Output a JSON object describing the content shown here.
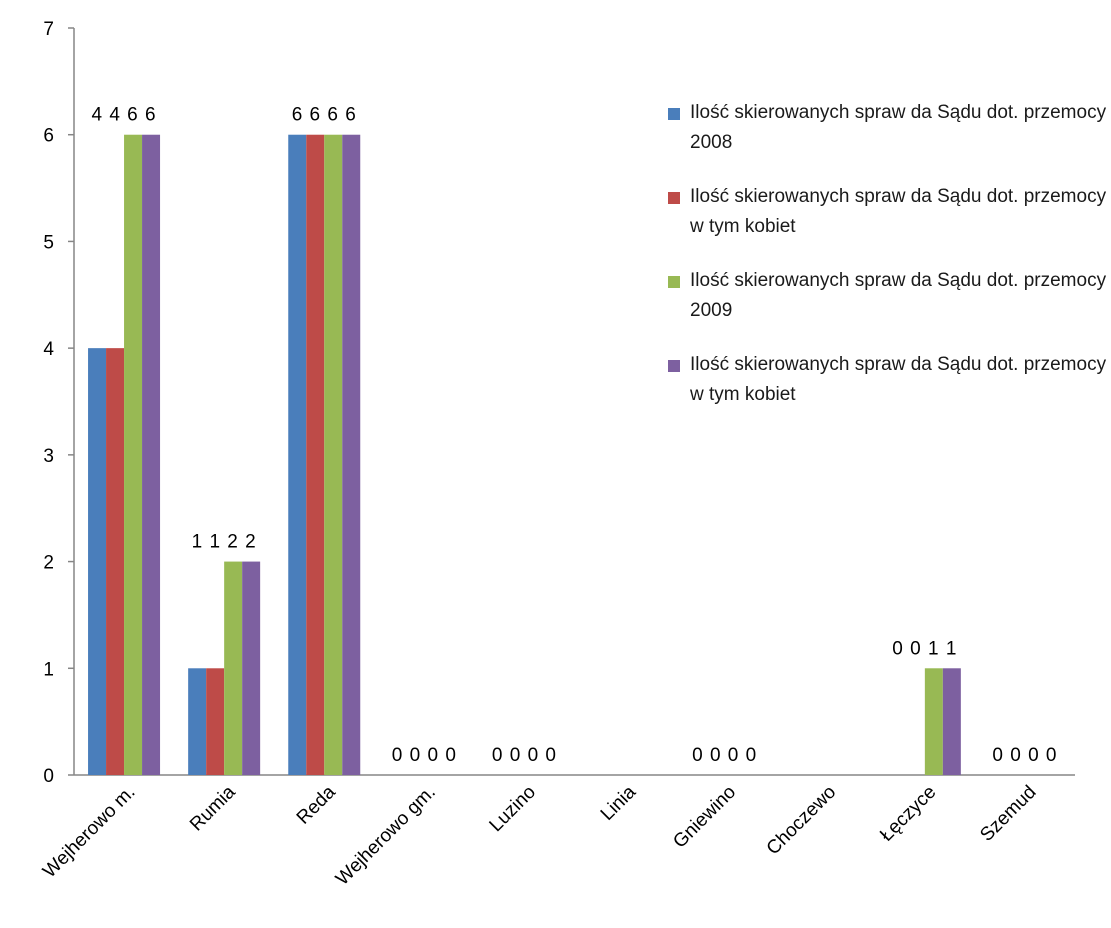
{
  "chart_data": {
    "type": "bar",
    "categories": [
      "Wejherowo m.",
      "Rumia",
      "Reda",
      "Wejherowo gm.",
      "Luzino",
      "Linia",
      "Gniewino",
      "Choczewo",
      "Łęczyce",
      "Szemud"
    ],
    "series": [
      {
        "name": "Ilość skierowanych spraw da Sądu dot. przemocy 2008",
        "color": "#4a7ebb",
        "values": [
          4,
          1,
          6,
          0,
          0,
          null,
          0,
          null,
          0,
          0
        ]
      },
      {
        "name": "Ilość skierowanych spraw da Sądu dot. przemocy w tym kobiet",
        "color": "#be4b48",
        "values": [
          4,
          1,
          6,
          0,
          0,
          null,
          0,
          null,
          0,
          0
        ]
      },
      {
        "name": "Ilość skierowanych spraw da Sądu dot. przemocy 2009",
        "color": "#98b954",
        "values": [
          6,
          2,
          6,
          0,
          0,
          null,
          0,
          null,
          1,
          0
        ]
      },
      {
        "name": "Ilość skierowanych spraw da Sądu dot. przemocy w tym kobiet",
        "color": "#7d60a0",
        "values": [
          6,
          2,
          6,
          0,
          0,
          null,
          0,
          null,
          1,
          0
        ]
      }
    ],
    "data_labels": [
      "4 4 6 6",
      "1 1 2 2",
      "6 6 6 6",
      "0 0 0 0",
      "0 0 0 0",
      "",
      "0 0 0 0",
      "",
      "0 0 1 1",
      "0 0 0 0"
    ],
    "yticks": [
      0,
      1,
      2,
      3,
      4,
      5,
      6,
      7
    ],
    "ylim": [
      0,
      7
    ],
    "legend_position": "right",
    "grid": false
  }
}
